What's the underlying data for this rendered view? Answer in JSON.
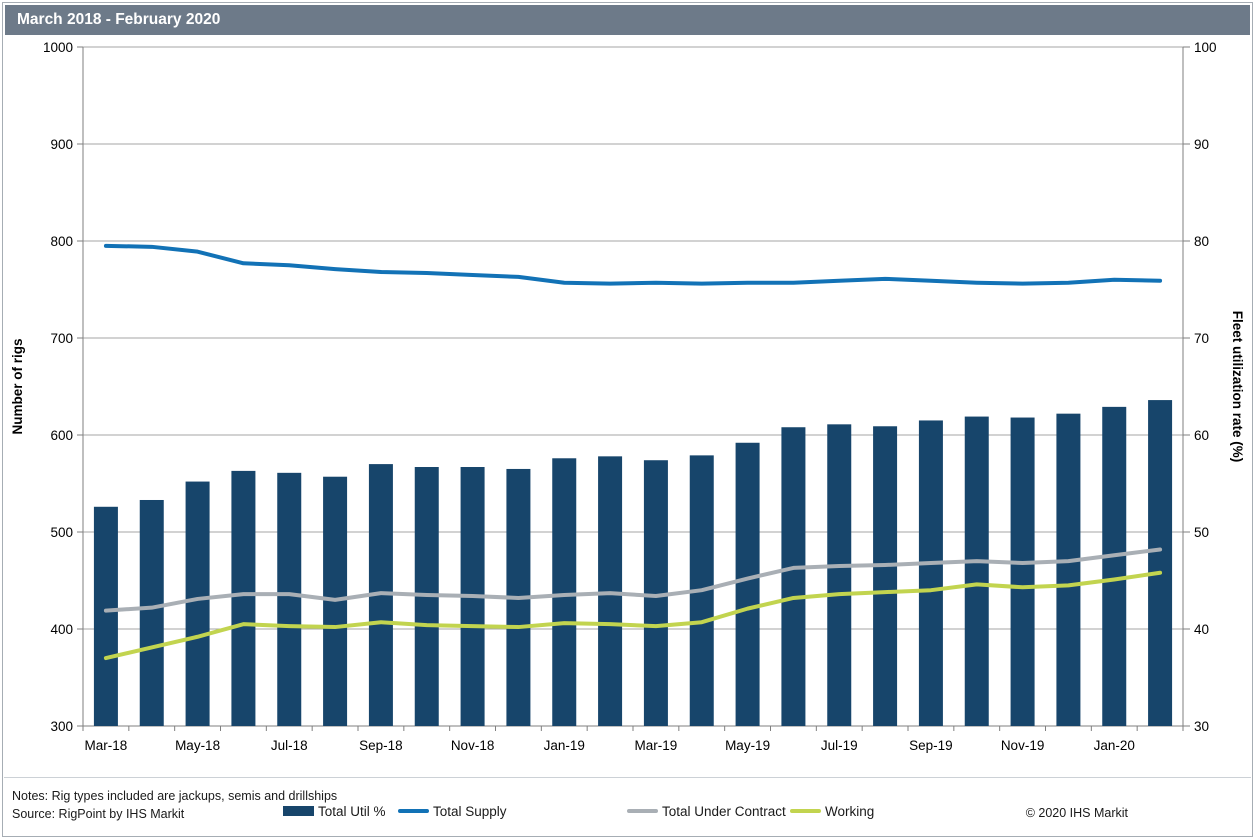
{
  "title": "March 2018 - February 2020",
  "footer": {
    "notes": "Notes: Rig types included are jackups, semis and drillships",
    "source": "Source: RigPoint by IHS Markit",
    "copyright": "© 2020 IHS Markit"
  },
  "colors": {
    "title_bg": "#6D7A89",
    "bar": "#17456B",
    "supply": "#1272B6",
    "contract": "#A9AFB5",
    "working": "#C2D44F",
    "grid": "#A6A6A6",
    "axis": "#7F7F7F"
  },
  "legend": {
    "items": [
      {
        "label": "Total Util %",
        "type": "bar",
        "color_key": "bar"
      },
      {
        "label": "Total Supply",
        "type": "line",
        "color_key": "supply"
      },
      {
        "label": "Total Under Contract",
        "type": "line",
        "color_key": "contract"
      },
      {
        "label": "Working",
        "type": "line",
        "color_key": "working"
      }
    ]
  },
  "chart_data": {
    "type": "bar+line combo, dual axis",
    "title": "March 2018 - February 2020",
    "grid": true,
    "categories": [
      "Mar-18",
      "Apr-18",
      "May-18",
      "Jun-18",
      "Jul-18",
      "Aug-18",
      "Sep-18",
      "Oct-18",
      "Nov-18",
      "Dec-18",
      "Jan-19",
      "Feb-19",
      "Mar-19",
      "Apr-19",
      "May-19",
      "Jun-19",
      "Jul-19",
      "Aug-19",
      "Sep-19",
      "Oct-19",
      "Nov-19",
      "Dec-19",
      "Jan-20",
      "Feb-20"
    ],
    "x_tick_labels": [
      "Mar-18",
      "May-18",
      "Jul-18",
      "Sep-18",
      "Nov-18",
      "Jan-19",
      "Mar-19",
      "May-19",
      "Jul-19",
      "Sep-19",
      "Nov-19",
      "Jan-20"
    ],
    "left_axis": {
      "label": "Number of rigs",
      "min": 300,
      "max": 1000,
      "ticks": [
        300,
        400,
        500,
        600,
        700,
        800,
        900,
        1000
      ]
    },
    "right_axis": {
      "label": "Fleet utilization rate (%)",
      "min": 30,
      "max": 100,
      "ticks": [
        30,
        40,
        50,
        60,
        70,
        80,
        90,
        100
      ]
    },
    "bar_series": {
      "name": "Total Util %",
      "slug": "total-util",
      "axis": "right",
      "values": [
        52.6,
        53.3,
        55.2,
        56.3,
        56.1,
        55.7,
        57.0,
        56.7,
        56.7,
        56.5,
        57.6,
        57.8,
        57.4,
        57.9,
        59.2,
        60.8,
        61.1,
        60.9,
        61.5,
        61.9,
        61.8,
        62.2,
        62.9,
        63.6
      ]
    },
    "line_series": [
      {
        "name": "Total Supply",
        "slug": "total-supply",
        "axis": "left",
        "color_key": "supply",
        "values": [
          795,
          794,
          789,
          777,
          775,
          771,
          768,
          767,
          765,
          763,
          757,
          756,
          757,
          756,
          757,
          757,
          759,
          761,
          759,
          757,
          756,
          757,
          760,
          759
        ]
      },
      {
        "name": "Total Under Contract",
        "slug": "total-under-contract",
        "axis": "left",
        "color_key": "contract",
        "values": [
          419,
          422,
          431,
          436,
          436,
          430,
          437,
          435,
          434,
          432,
          435,
          437,
          434,
          440,
          452,
          463,
          465,
          466,
          468,
          470,
          468,
          470,
          476,
          482
        ]
      },
      {
        "name": "Working",
        "slug": "working",
        "axis": "left",
        "color_key": "working",
        "values": [
          370,
          381,
          392,
          405,
          403,
          402,
          407,
          404,
          403,
          402,
          406,
          405,
          403,
          407,
          421,
          432,
          436,
          438,
          440,
          446,
          443,
          445,
          451,
          458
        ]
      }
    ]
  }
}
